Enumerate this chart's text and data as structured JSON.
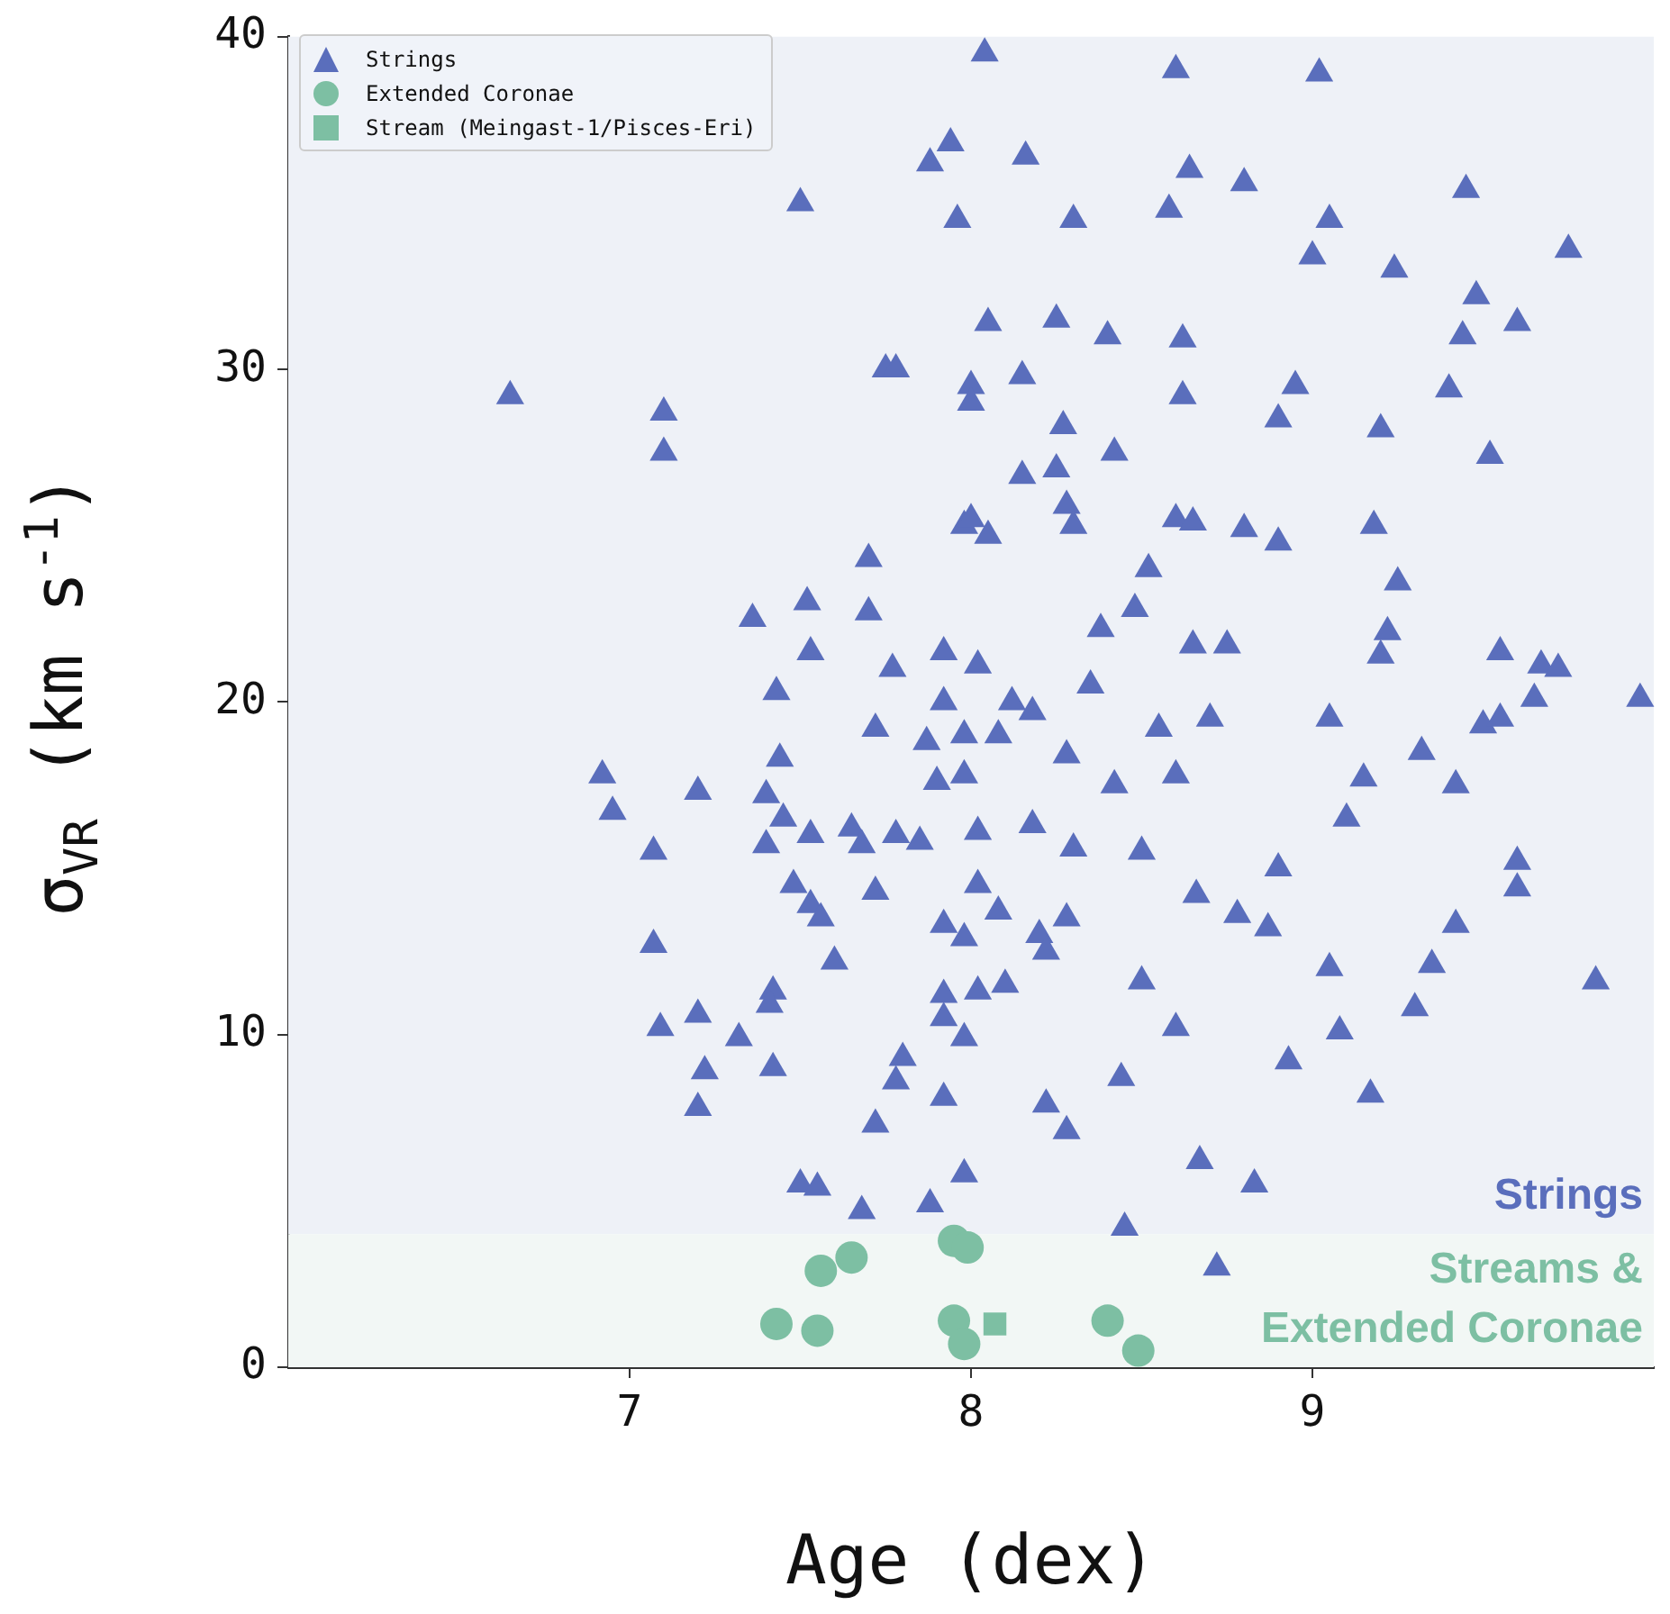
{
  "chart_data": {
    "type": "scatter",
    "xlabel": "Age (dex)",
    "ylabel": "σ$_{VR}$ (km s$^{-1}$)",
    "xlim": [
      6,
      10
    ],
    "xticks": [
      7,
      8,
      9
    ],
    "ylim": [
      0,
      40
    ],
    "yticks": [
      0,
      10,
      20,
      30,
      40
    ],
    "grid": false,
    "legend": "top left",
    "bands": [
      {
        "axis": "y",
        "from": 4,
        "to": 40,
        "label": "Strings",
        "color": "#eef1f7"
      },
      {
        "axis": "y",
        "from": 0,
        "to": 4,
        "label": "Streams & Extended Coronae",
        "color": "#f2f7f5"
      }
    ],
    "series": [
      {
        "name": "Strings",
        "color": "#5a6ebc",
        "marker": "triangle",
        "x": [
          6.65,
          6.92,
          6.95,
          7.07,
          7.07,
          7.09,
          7.1,
          7.1,
          7.2,
          7.2,
          7.22,
          7.2,
          7.32,
          7.36,
          7.4,
          7.4,
          7.42,
          7.41,
          7.42,
          7.43,
          7.44,
          7.45,
          7.48,
          7.5,
          7.5,
          7.52,
          7.53,
          7.53,
          7.53,
          7.55,
          7.56,
          7.6,
          7.65,
          7.68,
          7.7,
          7.7,
          7.72,
          7.72,
          7.72,
          7.68,
          7.75,
          7.78,
          7.77,
          7.78,
          7.78,
          7.8,
          7.85,
          7.88,
          7.87,
          7.88,
          7.9,
          7.92,
          7.92,
          7.92,
          7.92,
          7.92,
          7.92,
          7.94,
          7.96,
          7.98,
          7.98,
          7.98,
          7.98,
          7.98,
          7.98,
          8.0,
          8.0,
          8.0,
          8.02,
          8.02,
          8.02,
          8.02,
          8.04,
          8.05,
          8.05,
          8.08,
          8.08,
          8.1,
          8.12,
          8.15,
          8.15,
          8.16,
          8.18,
          8.18,
          8.2,
          8.22,
          8.22,
          8.25,
          8.25,
          8.27,
          8.28,
          8.28,
          8.28,
          8.28,
          8.3,
          8.3,
          8.3,
          8.35,
          8.38,
          8.4,
          8.42,
          8.42,
          8.44,
          8.48,
          8.5,
          8.5,
          8.45,
          8.52,
          8.55,
          8.58,
          8.6,
          8.6,
          8.6,
          8.6,
          8.62,
          8.62,
          8.64,
          8.65,
          8.65,
          8.66,
          8.67,
          8.7,
          8.72,
          8.75,
          8.78,
          8.8,
          8.8,
          8.83,
          8.87,
          8.9,
          8.9,
          8.9,
          8.93,
          8.95,
          9.0,
          9.02,
          9.05,
          9.05,
          9.05,
          9.08,
          9.1,
          9.15,
          9.17,
          9.18,
          9.2,
          9.22,
          9.2,
          9.24,
          9.25,
          9.3,
          9.35,
          9.32,
          9.4,
          9.42,
          9.42,
          9.45,
          9.44,
          9.48,
          9.5,
          9.52,
          9.55,
          9.55,
          9.6,
          9.6,
          9.6,
          9.65,
          9.67,
          9.72,
          9.75,
          9.83,
          9.96
        ],
        "values": [
          29.2,
          17.8,
          16.7,
          15.5,
          12.7,
          10.2,
          28.7,
          27.5,
          17.3,
          10.6,
          8.9,
          7.8,
          9.9,
          22.5,
          17.2,
          15.7,
          11.3,
          10.9,
          9.0,
          20.3,
          18.3,
          16.5,
          14.5,
          35.0,
          5.5,
          23.0,
          21.5,
          16.0,
          13.9,
          5.4,
          13.5,
          12.2,
          16.2,
          15.7,
          24.3,
          22.7,
          19.2,
          14.3,
          7.3,
          4.7,
          30.0,
          30.0,
          21.0,
          16.0,
          8.6,
          9.3,
          15.8,
          36.2,
          18.8,
          4.9,
          17.6,
          21.5,
          20.0,
          13.3,
          11.2,
          10.5,
          8.1,
          36.8,
          34.5,
          25.3,
          19.0,
          17.8,
          12.9,
          9.9,
          5.8,
          29.5,
          29.0,
          25.5,
          21.1,
          16.1,
          14.5,
          11.3,
          39.5,
          31.4,
          25.0,
          19.0,
          13.7,
          11.5,
          20.0,
          29.8,
          26.8,
          36.4,
          19.7,
          16.3,
          13.0,
          12.5,
          7.9,
          31.5,
          27.0,
          28.3,
          25.9,
          18.4,
          13.5,
          7.1,
          34.5,
          25.3,
          15.6,
          20.5,
          22.2,
          31.0,
          27.5,
          17.5,
          8.7,
          22.8,
          15.5,
          11.6,
          4.2,
          24.0,
          19.2,
          34.8,
          39.0,
          25.5,
          17.8,
          10.2,
          30.9,
          29.2,
          36.0,
          25.4,
          21.7,
          14.2,
          6.2,
          19.5,
          3.0,
          21.7,
          13.6,
          35.6,
          25.2,
          5.5,
          13.2,
          28.5,
          24.8,
          15.0,
          9.2,
          29.5,
          33.4,
          38.9,
          34.5,
          19.5,
          12.0,
          10.1,
          16.5,
          17.7,
          8.2,
          25.3,
          28.2,
          22.1,
          21.4,
          33.0,
          23.6,
          10.8,
          12.1,
          18.5,
          29.4,
          17.5,
          13.3,
          35.4,
          31.0,
          32.2,
          19.3,
          27.4,
          21.5,
          19.5,
          31.4,
          15.2,
          14.4,
          20.1,
          21.1,
          21.0,
          33.6,
          11.6,
          20.1
        ]
      },
      {
        "name": "Extended Coronae",
        "color": "#7dbfa3",
        "marker": "circle",
        "x": [
          7.43,
          7.55,
          7.56,
          7.65,
          7.95,
          7.99,
          7.95,
          7.98,
          8.4,
          8.49
        ],
        "values": [
          1.3,
          1.1,
          2.9,
          3.3,
          3.8,
          3.6,
          1.4,
          0.7,
          1.4,
          0.5
        ]
      },
      {
        "name": "Stream (Meingast-1/Pisces-Eri)",
        "color": "#7dbfa3",
        "marker": "square",
        "x": [
          8.07
        ],
        "values": [
          1.3
        ]
      }
    ]
  }
}
